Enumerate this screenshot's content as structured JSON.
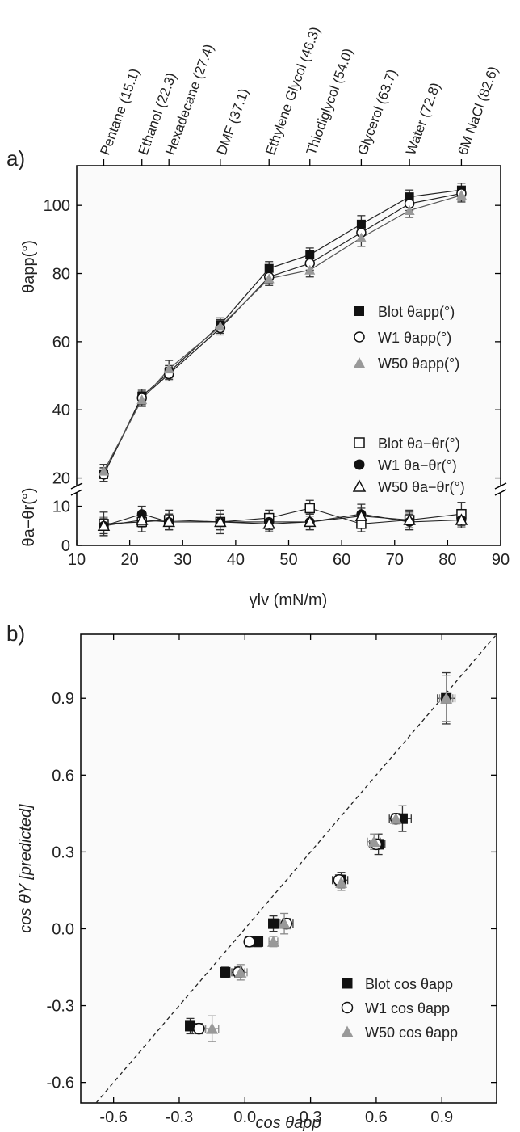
{
  "chart_data": [
    {
      "panel": "a)",
      "type": "line",
      "x_label": "γlv (mN/m)",
      "x_ticks": [
        "10",
        "20",
        "30",
        "40",
        "50",
        "60",
        "70",
        "80",
        "90"
      ],
      "xlim": [
        10,
        90
      ],
      "top_labels": [
        {
          "text": "Pentane (15.1)",
          "x": 15.1
        },
        {
          "text": "Ethanol (22.3)",
          "x": 22.3
        },
        {
          "text": "Hexadecane (27.4)",
          "x": 27.4
        },
        {
          "text": "DMF (37.1)",
          "x": 37.1
        },
        {
          "text": "Ethylene Glycol (46.3)",
          "x": 46.3
        },
        {
          "text": "Thiodiglycol (54.0)",
          "x": 54.0
        },
        {
          "text": "Glycerol (63.7)",
          "x": 63.7
        },
        {
          "text": "Water (72.8)",
          "x": 72.8
        },
        {
          "text": "6M NaCl (82.6)",
          "x": 82.6
        }
      ],
      "upper": {
        "y_label": "θapp(°)",
        "y_ticks": [
          "20",
          "40",
          "60",
          "80",
          "100"
        ],
        "ylim": [
          18,
          110
        ],
        "axis_break": true,
        "x": [
          15.1,
          22.3,
          27.4,
          37.1,
          46.3,
          54.0,
          63.7,
          72.8,
          82.6
        ],
        "series": [
          {
            "name": "Blot θapp(°)",
            "marker": "filled-square",
            "values": [
              21,
              44,
              51,
              65,
              81.5,
              85.5,
              94.5,
              102.5,
              104.5
            ],
            "err": [
              2,
              2,
              2,
              2,
              2,
              2,
              2.5,
              2,
              2
            ]
          },
          {
            "name": "W1 θapp(°)",
            "marker": "open-circle",
            "values": [
              21,
              43.5,
              50.5,
              64,
              79,
              83,
              92,
              100.5,
              103.5
            ],
            "err": [
              2,
              2,
              2,
              2,
              2,
              2,
              2.5,
              2,
              2
            ]
          },
          {
            "name": "W50 θapp(°)",
            "marker": "gray-triangle",
            "values": [
              22,
              43,
              52,
              64.5,
              78.5,
              81,
              90.5,
              98.5,
              103
            ],
            "err": [
              2,
              2,
              2.5,
              2,
              2,
              2,
              2.5,
              2,
              2
            ]
          }
        ]
      },
      "lower": {
        "y_label": "θa−θr(°)",
        "y_ticks": [
          "0",
          "10"
        ],
        "ylim": [
          0,
          13
        ],
        "x": [
          15.1,
          22.3,
          27.4,
          37.1,
          46.3,
          54.0,
          63.7,
          72.8,
          82.6
        ],
        "series": [
          {
            "name": "Blot θa−θr(°)",
            "marker": "open-square",
            "values": [
              5.5,
              6,
              6.5,
              6,
              7,
              9.5,
              5.5,
              6.5,
              8
            ],
            "err": [
              3,
              2.5,
              2.5,
              3,
              2,
              2,
              2,
              2.5,
              3
            ]
          },
          {
            "name": "W1 θa−θr(°)",
            "marker": "filled-circle",
            "values": [
              5,
              8,
              6,
              6,
              6,
              6,
              8,
              6,
              6.5
            ],
            "err": [
              2.5,
              2,
              2,
              2,
              2,
              2,
              2.5,
              2,
              2
            ]
          },
          {
            "name": "W50 θa−θr(°)",
            "marker": "open-triangle",
            "values": [
              5,
              6.5,
              6,
              6,
              5.5,
              6,
              7.5,
              6.5,
              6.5
            ],
            "err": [
              2,
              2,
              2,
              2,
              2,
              2,
              2,
              2,
              2
            ]
          }
        ]
      },
      "legend_placement": "right"
    },
    {
      "panel": "b)",
      "type": "scatter",
      "x_label": "cos θapp",
      "y_label": "cos θY [predicted]",
      "x_ticks": [
        "-0.6",
        "-0.3",
        "0.0",
        "0.3",
        "0.6",
        "0.9"
      ],
      "y_ticks": [
        "-0.6",
        "-0.3",
        "0.0",
        "0.3",
        "0.6",
        "0.9"
      ],
      "xlim": [
        -0.75,
        1.15
      ],
      "ylim": [
        -0.68,
        1.15
      ],
      "reference_line": "dashed y = x",
      "series": [
        {
          "name": "Blot cos θapp",
          "marker": "filled-square",
          "points": [
            [
              -0.25,
              -0.38,
              0.02,
              0.03
            ],
            [
              -0.09,
              -0.17,
              0.02,
              0.02
            ],
            [
              0.06,
              -0.05,
              0.02,
              0.02
            ],
            [
              0.13,
              0.02,
              0.02,
              0.03
            ],
            [
              0.44,
              0.19,
              0.03,
              0.03
            ],
            [
              0.61,
              0.33,
              0.03,
              0.04
            ],
            [
              0.72,
              0.43,
              0.04,
              0.05
            ],
            [
              0.92,
              0.9,
              0.04,
              0.1
            ]
          ]
        },
        {
          "name": "W1 cos θapp",
          "marker": "open-circle",
          "points": [
            [
              -0.21,
              -0.39,
              0.03,
              0.02
            ],
            [
              -0.03,
              -0.17,
              0.03,
              0.02
            ],
            [
              0.02,
              -0.05,
              0.02,
              0.02
            ],
            [
              0.19,
              0.02,
              0.03,
              0.02
            ],
            [
              0.43,
              0.19,
              0.03,
              0.02
            ],
            [
              0.6,
              0.33,
              0.03,
              0.02
            ],
            [
              0.69,
              0.43,
              0.03,
              0.02
            ]
          ]
        },
        {
          "name": "W50 cos θapp",
          "marker": "gray-triangle",
          "points": [
            [
              -0.15,
              -0.39,
              0.03,
              0.05
            ],
            [
              -0.02,
              -0.17,
              0.03,
              0.03
            ],
            [
              0.13,
              -0.05,
              0.02,
              0.02
            ],
            [
              0.18,
              0.02,
              0.02,
              0.04
            ],
            [
              0.44,
              0.18,
              0.02,
              0.03
            ],
            [
              0.59,
              0.34,
              0.03,
              0.03
            ],
            [
              0.69,
              0.43,
              0.02,
              0.02
            ],
            [
              0.92,
              0.9,
              0.03,
              0.09
            ]
          ]
        }
      ],
      "legend_placement": "bottom-right"
    }
  ]
}
